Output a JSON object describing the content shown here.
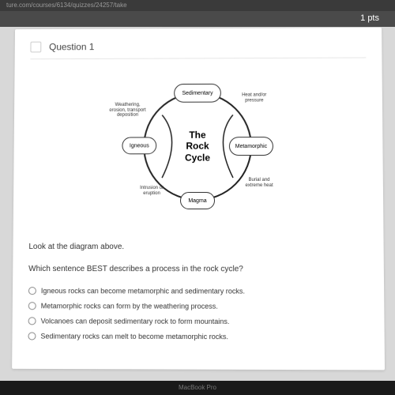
{
  "browser": {
    "url": "ture.com/courses/6134/quizzes/24257/take"
  },
  "topbar": {
    "points": "1 pts"
  },
  "question": {
    "title": "Question 1"
  },
  "diagram": {
    "center_line1": "The",
    "center_line2": "Rock",
    "center_line3": "Cycle",
    "nodes": {
      "sedimentary": "Sedimentary",
      "metamorphic": "Metamorphic",
      "magma": "Magma",
      "igneous": "Igneous"
    },
    "labels": {
      "heat_pressure": "Heat and/or\npressure",
      "burial": "Burial and\nextreme heat",
      "intrusion": "Intrusion or\neruption",
      "weathering": "Weathering,\nerosion, transport\ndeposition"
    },
    "circle_color": "#222222",
    "background": "#ffffff"
  },
  "body": {
    "line1": "Look at the diagram above.",
    "line2": "Which sentence BEST describes a process in the rock cycle?"
  },
  "choices": [
    "Igneous rocks can become metamorphic and sedimentary rocks.",
    "Metamorphic rocks can form by the weathering process.",
    "Volcanoes can deposit sedimentary rock to form mountains.",
    "Sedimentary rocks can melt to become metamorphic rocks."
  ],
  "footer": {
    "device": "MacBook Pro"
  }
}
